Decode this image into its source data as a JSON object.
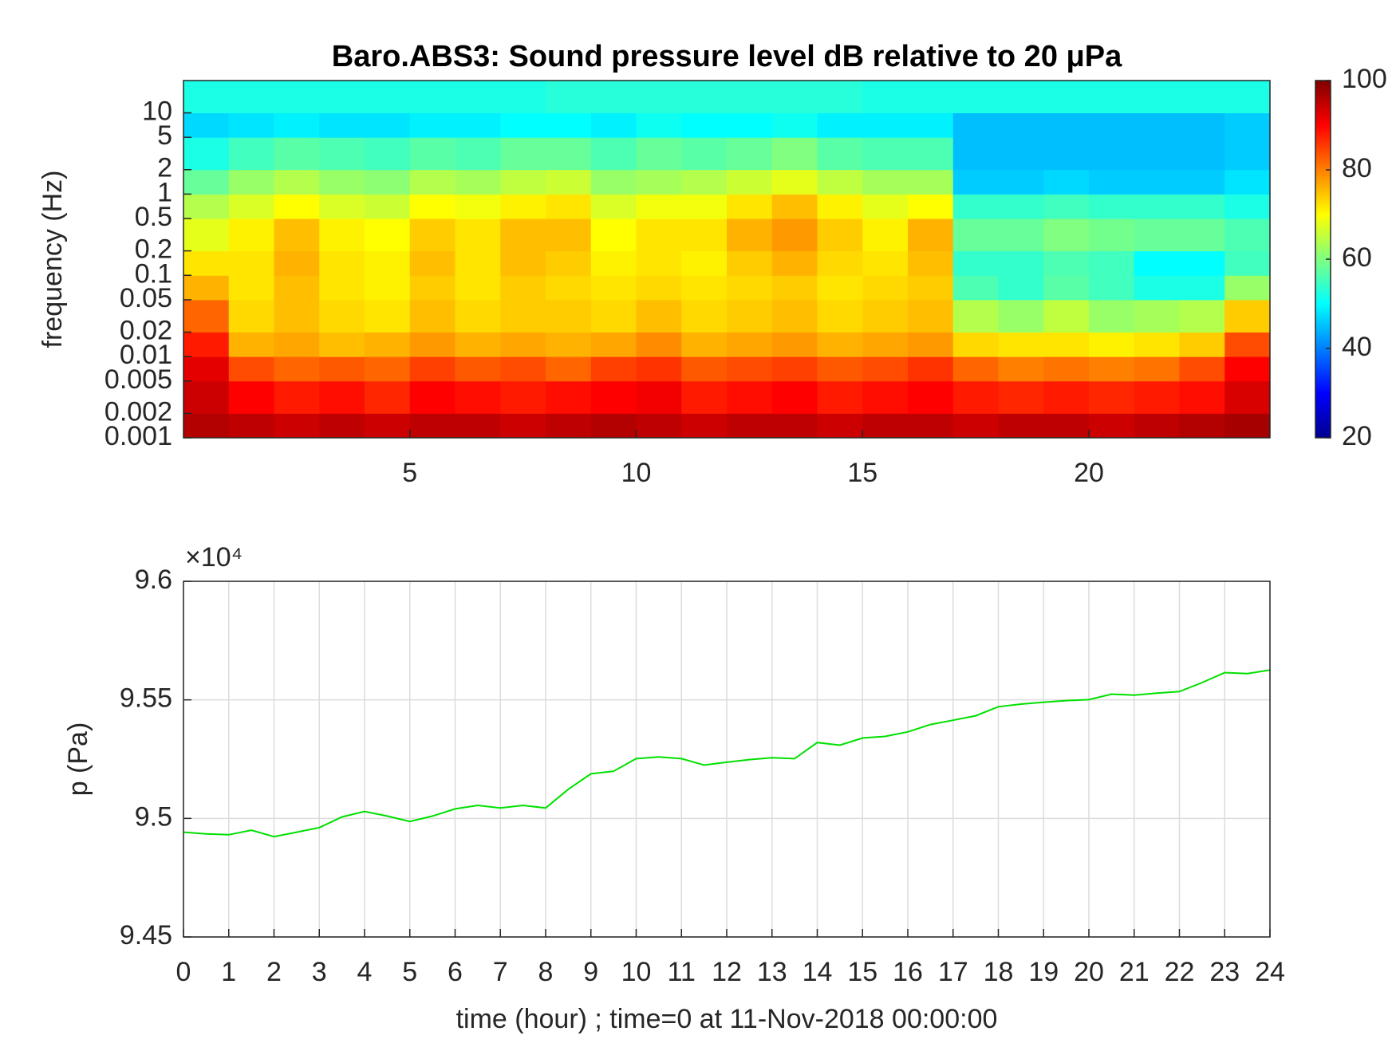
{
  "chart_data": [
    {
      "type": "heatmap",
      "title": "Baro.ABS3: Sound pressure level dB relative to 20 μPa",
      "ylabel": "frequency (Hz)",
      "ylog": true,
      "colormap": "jet",
      "x": [
        0,
        1,
        2,
        3,
        4,
        5,
        6,
        7,
        8,
        9,
        10,
        11,
        12,
        13,
        14,
        15,
        16,
        17,
        18,
        19,
        20,
        21,
        22,
        23,
        24
      ],
      "y": [
        0.001,
        0.002,
        0.005,
        0.01,
        0.02,
        0.05,
        0.1,
        0.2,
        0.5,
        1,
        2,
        5,
        10,
        25
      ],
      "values": [
        [
          96,
          95,
          94,
          95,
          94,
          95,
          95,
          94,
          95,
          96,
          95,
          94,
          95,
          95,
          94,
          95,
          95,
          94,
          95,
          95,
          94,
          95,
          96,
          97
        ],
        [
          94,
          90,
          88,
          89,
          87,
          90,
          89,
          88,
          89,
          90,
          91,
          88,
          89,
          90,
          88,
          89,
          90,
          88,
          87,
          88,
          87,
          88,
          89,
          93
        ],
        [
          92,
          84,
          82,
          83,
          82,
          85,
          83,
          84,
          82,
          85,
          86,
          83,
          84,
          85,
          83,
          84,
          86,
          82,
          80,
          81,
          80,
          81,
          84,
          90
        ],
        [
          88,
          76,
          77,
          75,
          76,
          78,
          76,
          77,
          76,
          77,
          79,
          76,
          77,
          78,
          76,
          77,
          78,
          73,
          72,
          72,
          71,
          72,
          74,
          84
        ],
        [
          82,
          73,
          75,
          73,
          72,
          75,
          73,
          74,
          74,
          73,
          75,
          73,
          74,
          75,
          73,
          74,
          75,
          64,
          62,
          65,
          62,
          63,
          64,
          74
        ],
        [
          76,
          72,
          75,
          72,
          71,
          74,
          72,
          74,
          73,
          72,
          73,
          72,
          73,
          74,
          72,
          73,
          74,
          56,
          54,
          57,
          55,
          52,
          52,
          62
        ],
        [
          72,
          72,
          76,
          72,
          71,
          75,
          72,
          75,
          74,
          71,
          72,
          71,
          74,
          76,
          73,
          72,
          75,
          54,
          54,
          56,
          55,
          50,
          50,
          55
        ],
        [
          68,
          71,
          75,
          71,
          70,
          74,
          72,
          75,
          75,
          70,
          72,
          72,
          76,
          78,
          74,
          71,
          76,
          58,
          58,
          60,
          59,
          58,
          58,
          56
        ],
        [
          64,
          67,
          70,
          67,
          66,
          70,
          69,
          71,
          72,
          67,
          69,
          69,
          72,
          75,
          71,
          68,
          70,
          54,
          54,
          55,
          54,
          54,
          54,
          52
        ],
        [
          58,
          62,
          64,
          62,
          61,
          64,
          63,
          65,
          66,
          62,
          63,
          64,
          66,
          68,
          65,
          63,
          63,
          46,
          46,
          47,
          46,
          46,
          46,
          48
        ],
        [
          52,
          55,
          57,
          56,
          55,
          57,
          56,
          58,
          58,
          56,
          58,
          57,
          58,
          60,
          57,
          56,
          56,
          45,
          45,
          45,
          45,
          45,
          45,
          46
        ],
        [
          47,
          48,
          49,
          48,
          48,
          49,
          49,
          50,
          50,
          49,
          51,
          50,
          50,
          51,
          49,
          49,
          49,
          45,
          45,
          45,
          45,
          45,
          45,
          46
        ],
        [
          52,
          52,
          52,
          52,
          52,
          52,
          52,
          52,
          53,
          53,
          53,
          53,
          53,
          53,
          53,
          52,
          52,
          52,
          52,
          52,
          52,
          52,
          52,
          52
        ]
      ],
      "xlim": [
        0,
        24
      ],
      "xticks": [
        5,
        10,
        15,
        20
      ],
      "ylim": [
        0.001,
        25
      ],
      "yticks": [
        0.001,
        0.002,
        0.005,
        0.01,
        0.02,
        0.05,
        0.1,
        0.2,
        0.5,
        1,
        2,
        5,
        10
      ],
      "clim": [
        20,
        100
      ],
      "cticks": [
        20,
        40,
        60,
        80,
        100
      ]
    },
    {
      "type": "line",
      "xlabel": "time (hour) ; time=0 at 11-Nov-2018 00:00:00",
      "ylabel": "p (Pa)",
      "axis_exponent": "×10⁴",
      "color": "#00e000",
      "grid": true,
      "x": [
        0,
        0.5,
        1,
        1.5,
        2,
        2.5,
        3,
        3.5,
        4,
        4.5,
        5,
        5.5,
        6,
        6.5,
        7,
        7.5,
        8,
        8.5,
        9,
        9.5,
        10,
        10.5,
        11,
        11.5,
        12,
        12.5,
        13,
        13.5,
        14,
        14.5,
        15,
        15.5,
        16,
        16.5,
        17,
        17.5,
        18,
        18.5,
        19,
        19.5,
        20,
        20.5,
        21,
        21.5,
        22,
        22.5,
        23,
        23.5,
        24
      ],
      "values": [
        94942,
        94935,
        94931,
        94950,
        94923,
        94942,
        94961,
        95006,
        95029,
        95010,
        94987,
        95010,
        95040,
        95055,
        95044,
        95055,
        95044,
        95123,
        95188,
        95199,
        95252,
        95259,
        95252,
        95225,
        95237,
        95248,
        95256,
        95252,
        95320,
        95309,
        95339,
        95346,
        95365,
        95396,
        95414,
        95433,
        95471,
        95482,
        95490,
        95497,
        95501,
        95524,
        95520,
        95528,
        95535,
        95573,
        95615,
        95611,
        95626
      ],
      "xlim": [
        0,
        24
      ],
      "xticks": [
        0,
        1,
        2,
        3,
        4,
        5,
        6,
        7,
        8,
        9,
        10,
        11,
        12,
        13,
        14,
        15,
        16,
        17,
        18,
        19,
        20,
        21,
        22,
        23,
        24
      ],
      "ylim": [
        94500,
        96000
      ],
      "yticks": [
        {
          "value": 94500,
          "label": "9.45"
        },
        {
          "value": 95000,
          "label": "9.5"
        },
        {
          "value": 95500,
          "label": "9.55"
        },
        {
          "value": 96000,
          "label": "9.6"
        }
      ]
    }
  ]
}
